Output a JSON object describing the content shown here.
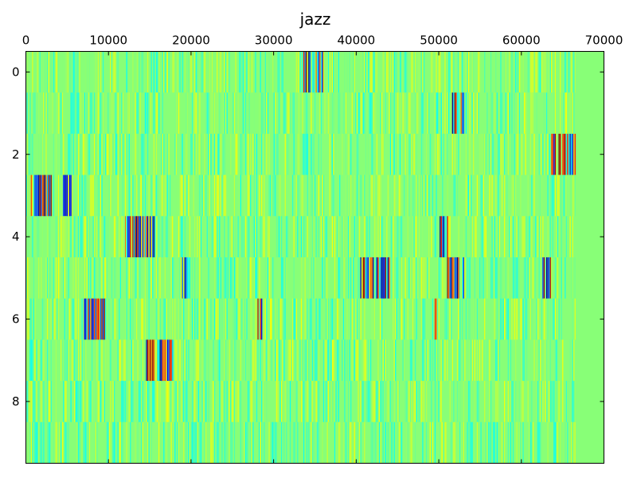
{
  "chart_data": {
    "type": "heatmap",
    "title": "jazz",
    "xlabel": "",
    "ylabel": "",
    "xlim": [
      0,
      70000
    ],
    "ylim": [
      9.5,
      -0.5
    ],
    "x_ticks": [
      0,
      10000,
      20000,
      30000,
      40000,
      50000,
      60000,
      70000
    ],
    "x_tick_labels": [
      "0",
      "10000",
      "20000",
      "30000",
      "40000",
      "50000",
      "60000",
      "70000"
    ],
    "y_ticks": [
      0,
      2,
      4,
      6,
      8
    ],
    "y_tick_labels": [
      "0",
      "2",
      "4",
      "6",
      "8"
    ],
    "x_axis_position": "top",
    "grid": false,
    "colormap": "jet",
    "background_value_color": "#88ff77",
    "rows": 10,
    "data_extent_x": 66500,
    "series": [
      {
        "row": 0,
        "active_ranges": [
          [
            33500,
            36000
          ]
        ]
      },
      {
        "row": 1,
        "active_ranges": [
          [
            51500,
            53000
          ]
        ]
      },
      {
        "row": 2,
        "active_ranges": [
          [
            63500,
            66500
          ]
        ]
      },
      {
        "row": 3,
        "active_ranges": [
          [
            500,
            3000
          ],
          [
            4500,
            5500
          ]
        ]
      },
      {
        "row": 4,
        "active_ranges": [
          [
            12000,
            15500
          ],
          [
            50000,
            51000
          ]
        ]
      },
      {
        "row": 5,
        "active_ranges": [
          [
            18500,
            19500
          ],
          [
            40500,
            44000
          ],
          [
            51000,
            53000
          ],
          [
            62500,
            63500
          ]
        ]
      },
      {
        "row": 6,
        "active_ranges": [
          [
            7000,
            9500
          ],
          [
            28000,
            28500
          ],
          [
            49500,
            50000
          ]
        ]
      },
      {
        "row": 7,
        "active_ranges": [
          [
            14500,
            18000
          ]
        ]
      },
      {
        "row": 8,
        "active_ranges": []
      },
      {
        "row": 9,
        "active_ranges": []
      }
    ]
  }
}
